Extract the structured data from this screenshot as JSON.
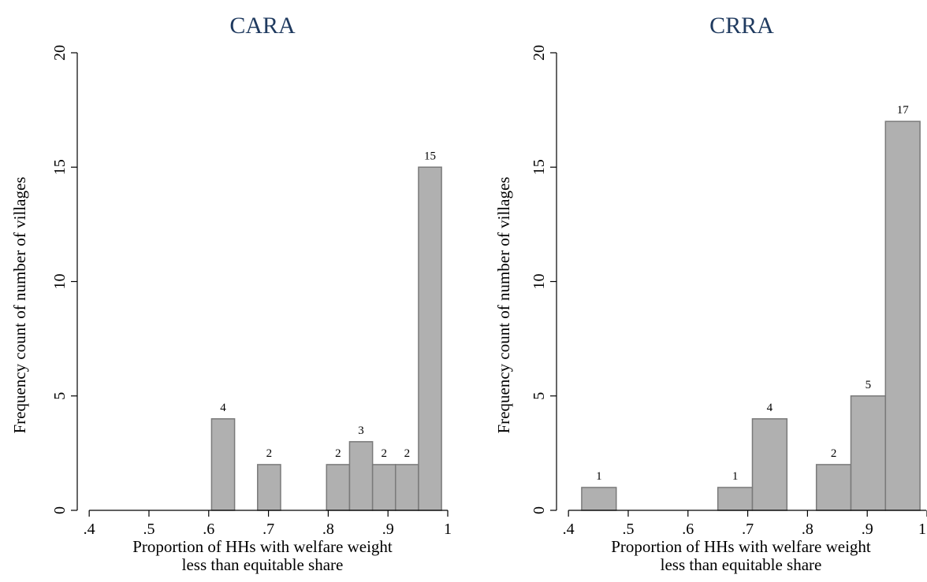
{
  "chart_data": [
    {
      "type": "bar",
      "title": "CARA",
      "xlabel": [
        "Proportion of HHs with welfare weight",
        "less than equitable share"
      ],
      "ylabel": "Frequency count of number of villages",
      "xlim": [
        0.38,
        1.0
      ],
      "ylim": [
        0,
        20
      ],
      "x_ticks": [
        ".4",
        ".5",
        ".6",
        ".7",
        ".8",
        ".9",
        "1"
      ],
      "y_ticks": [
        "0",
        "5",
        "10",
        "15",
        "20"
      ],
      "bar_color": "#b0b0b0",
      "bar_edge_color": "#7a7a7a",
      "bins": [
        {
          "x0": 0.6048,
          "x1": 0.6433,
          "value": 4,
          "label": "4"
        },
        {
          "x0": 0.6818,
          "x1": 0.7203,
          "value": 2,
          "label": "2"
        },
        {
          "x0": 0.7972,
          "x1": 0.8357,
          "value": 2,
          "label": "2"
        },
        {
          "x0": 0.8357,
          "x1": 0.8742,
          "value": 3,
          "label": "3"
        },
        {
          "x0": 0.8742,
          "x1": 0.9126,
          "value": 2,
          "label": "2"
        },
        {
          "x0": 0.9126,
          "x1": 0.9511,
          "value": 2,
          "label": "2"
        },
        {
          "x0": 0.9511,
          "x1": 0.9896,
          "value": 15,
          "label": "15"
        }
      ]
    },
    {
      "type": "bar",
      "title": "CRRA",
      "xlabel": [
        "Proportion of HHs with welfare weight",
        "less than equitable share"
      ],
      "ylabel": "Frequency count of number of villages",
      "xlim": [
        0.38,
        1.0
      ],
      "ylim": [
        0,
        20
      ],
      "x_ticks": [
        ".4",
        ".5",
        ".6",
        ".7",
        ".8",
        ".9",
        "1"
      ],
      "y_ticks": [
        "0",
        "5",
        "10",
        "15",
        "20"
      ],
      "bar_color": "#b0b0b0",
      "bar_edge_color": "#7a7a7a",
      "bins": [
        {
          "x0": 0.4221,
          "x1": 0.4799,
          "value": 1,
          "label": "1"
        },
        {
          "x0": 0.65,
          "x1": 0.7078,
          "value": 1,
          "label": "1"
        },
        {
          "x0": 0.7078,
          "x1": 0.7656,
          "value": 4,
          "label": "4"
        },
        {
          "x0": 0.8149,
          "x1": 0.8727,
          "value": 2,
          "label": "2"
        },
        {
          "x0": 0.8727,
          "x1": 0.9305,
          "value": 5,
          "label": "5"
        },
        {
          "x0": 0.9305,
          "x1": 0.9883,
          "value": 17,
          "label": "17"
        }
      ]
    }
  ]
}
